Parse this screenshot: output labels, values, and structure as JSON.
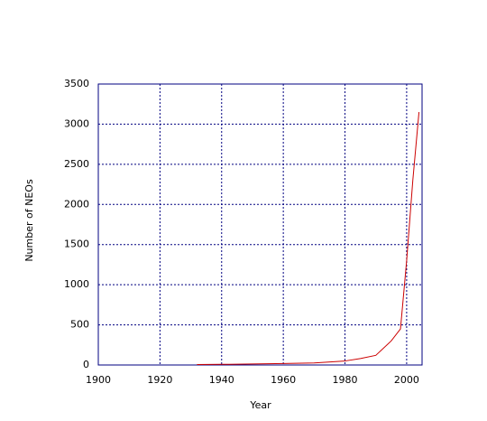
{
  "chart_data": {
    "type": "line",
    "x_label": "Year",
    "y_label": "Number of NEOs",
    "x": [
      1932,
      1940,
      1950,
      1960,
      1970,
      1980,
      1985,
      1990,
      1995,
      1998,
      2000,
      2002,
      2004
    ],
    "series": [
      {
        "color": "#cc0000",
        "values": [
          5,
          8,
          12,
          18,
          25,
          50,
          80,
          120,
          300,
          450,
          1300,
          2300,
          3150
        ]
      }
    ],
    "xlim": [
      1900,
      2005
    ],
    "xticks": [
      1900,
      1920,
      1940,
      1960,
      1980,
      2000
    ],
    "ylim": [
      0,
      3500
    ],
    "yticks": [
      0,
      500,
      1000,
      1500,
      2000,
      2500,
      3000,
      3500
    ],
    "grid": true
  }
}
